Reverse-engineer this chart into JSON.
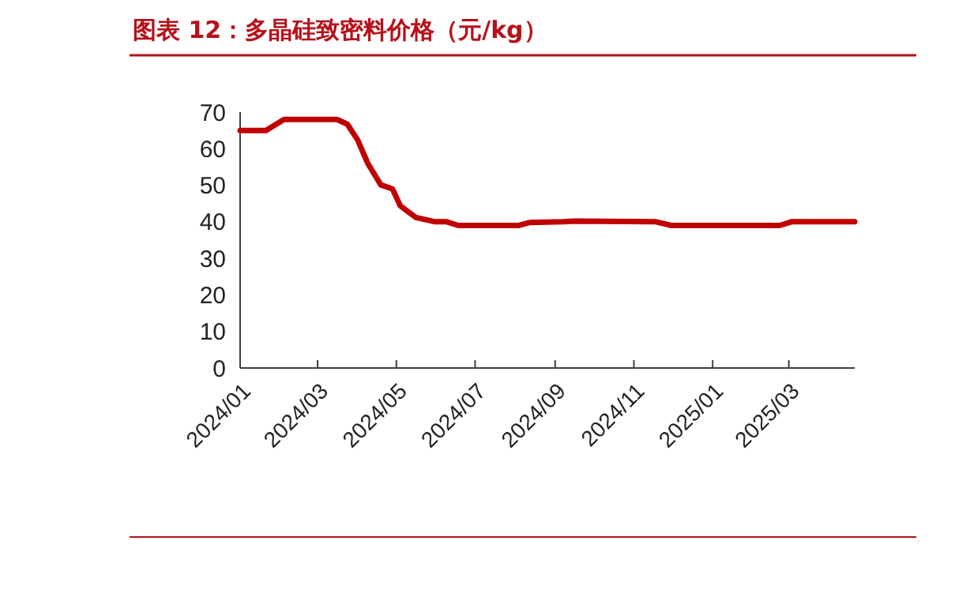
{
  "chart_data": {
    "type": "line",
    "title": "图表 12：多晶硅致密料价格（元/kg）",
    "x": [
      "2024-01-01",
      "2024-01-21",
      "2024-02-04",
      "2024-03-16",
      "2024-03-24",
      "2024-04-01",
      "2024-04-09",
      "2024-04-19",
      "2024-04-28",
      "2024-05-04",
      "2024-05-16",
      "2024-05-31",
      "2024-06-09",
      "2024-06-18",
      "2024-08-04",
      "2024-08-12",
      "2024-09-08",
      "2024-09-16",
      "2024-11-18",
      "2024-11-30",
      "2025-02-22",
      "2025-03-03",
      "2025-04-21"
    ],
    "series": [
      {
        "color": "#c00000",
        "values": [
          65,
          65,
          68,
          68,
          66.7,
          62.4,
          55.9,
          50.1,
          49,
          44.4,
          41.2,
          40,
          40,
          39,
          39,
          39.8,
          40,
          40.2,
          40,
          39,
          39,
          40,
          40
        ]
      }
    ],
    "xlim": [
      "2024-01-01",
      "2025-04-21"
    ],
    "xticks": [
      {
        "value": "2024-01-01",
        "label": "2024/01"
      },
      {
        "value": "2024-03-01",
        "label": "2024/03"
      },
      {
        "value": "2024-05-01",
        "label": "2024/05"
      },
      {
        "value": "2024-07-01",
        "label": "2024/07"
      },
      {
        "value": "2024-09-01",
        "label": "2024/09"
      },
      {
        "value": "2024-11-01",
        "label": "2024/11"
      },
      {
        "value": "2025-01-01",
        "label": "2025/01"
      },
      {
        "value": "2025-03-01",
        "label": "2025/03"
      }
    ],
    "ylim": [
      0,
      70
    ],
    "yticks": [
      0,
      10,
      20,
      30,
      40,
      50,
      60,
      70
    ],
    "grid": false,
    "marker": "none",
    "line_style": "solid"
  }
}
